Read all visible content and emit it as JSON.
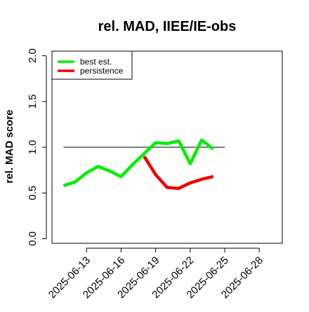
{
  "chart_data": {
    "type": "line",
    "title": "rel. MAD, IIEE/IE-obs",
    "xlabel": "",
    "ylabel": "rel. MAD score",
    "xlim": [
      "2025-06-10",
      "2025-06-30"
    ],
    "ylim": [
      -0.05,
      2.05
    ],
    "x_ticks": [
      "2025-06-13",
      "2025-06-16",
      "2025-06-19",
      "2025-06-22",
      "2025-06-25",
      "2025-06-28"
    ],
    "y_ticks": [
      "0.0",
      "0.5",
      "1.0",
      "1.5",
      "2.0"
    ],
    "reference_line": {
      "y": 1.0,
      "x_start": "2025-06-11",
      "x_end": "2025-06-25",
      "color": "#555555"
    },
    "grid": false,
    "legend": "top-left",
    "series": [
      {
        "name": "best est.",
        "color": "#00ee00",
        "points": [
          {
            "x": "2025-06-11",
            "y": 0.58
          },
          {
            "x": "2025-06-12",
            "y": 0.62
          },
          {
            "x": "2025-06-13",
            "y": 0.72
          },
          {
            "x": "2025-06-14",
            "y": 0.79
          },
          {
            "x": "2025-06-15",
            "y": 0.74
          },
          {
            "x": "2025-06-16",
            "y": 0.68
          },
          {
            "x": "2025-06-17",
            "y": 0.81
          },
          {
            "x": "2025-06-18",
            "y": 0.93
          },
          {
            "x": "2025-06-19",
            "y": 1.05
          },
          {
            "x": "2025-06-20",
            "y": 1.04
          },
          {
            "x": "2025-06-21",
            "y": 1.07
          },
          {
            "x": "2025-06-22",
            "y": 0.82
          },
          {
            "x": "2025-06-23",
            "y": 1.08
          },
          {
            "x": "2025-06-24",
            "y": 0.98
          }
        ]
      },
      {
        "name": "persistence",
        "color": "#ee0000",
        "points": [
          {
            "x": "2025-06-18",
            "y": 0.9
          },
          {
            "x": "2025-06-19",
            "y": 0.7
          },
          {
            "x": "2025-06-20",
            "y": 0.56
          },
          {
            "x": "2025-06-21",
            "y": 0.55
          },
          {
            "x": "2025-06-22",
            "y": 0.61
          },
          {
            "x": "2025-06-23",
            "y": 0.65
          },
          {
            "x": "2025-06-24",
            "y": 0.68
          }
        ]
      }
    ]
  }
}
